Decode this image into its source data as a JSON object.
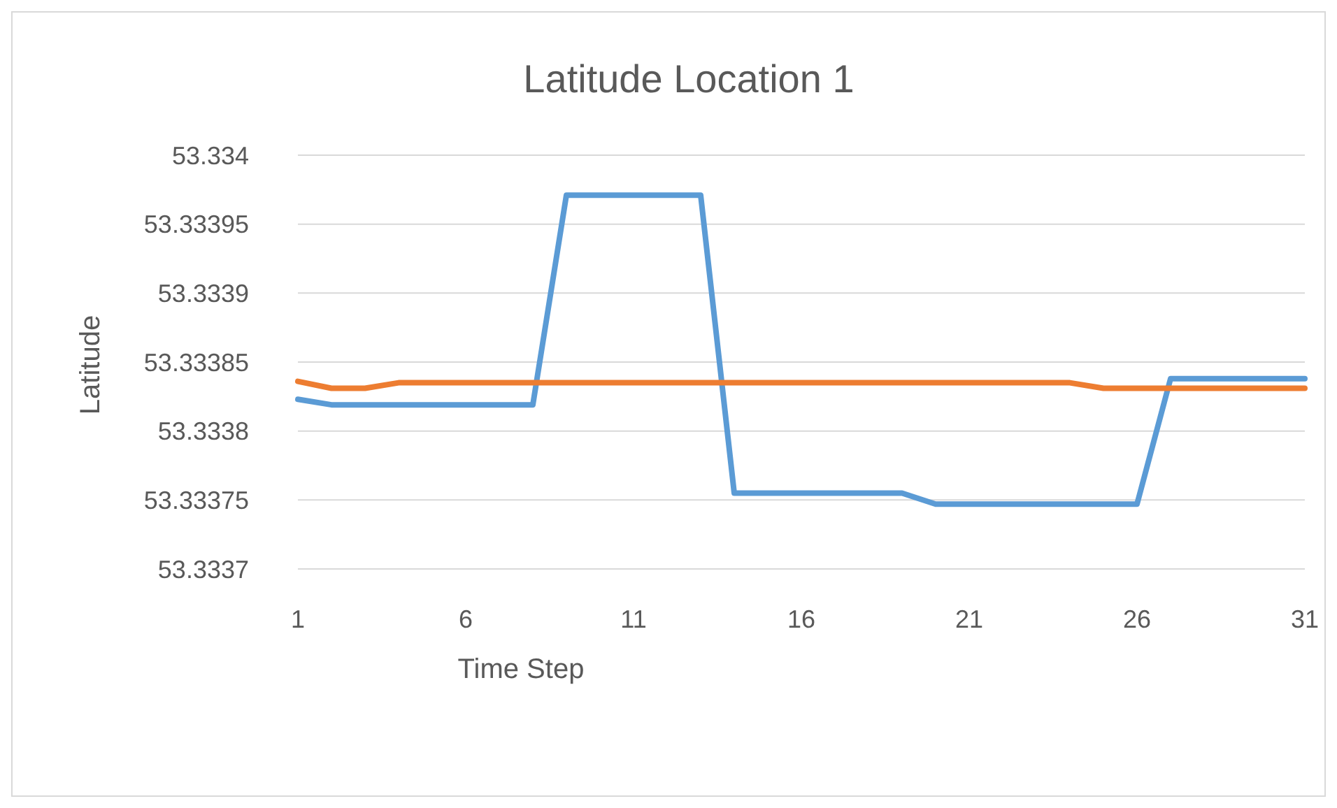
{
  "chart_data": {
    "type": "line",
    "title": "Latitude Location 1",
    "xlabel": "Time Step",
    "ylabel": "Latitude",
    "x": [
      1,
      2,
      3,
      4,
      5,
      6,
      7,
      8,
      9,
      10,
      11,
      12,
      13,
      14,
      15,
      16,
      17,
      18,
      19,
      20,
      21,
      22,
      23,
      24,
      25,
      26,
      27,
      28,
      29,
      30,
      31
    ],
    "xlim": [
      1,
      31
    ],
    "xticks": [
      1,
      6,
      11,
      16,
      21,
      26,
      31
    ],
    "ylim": [
      53.3337,
      53.334
    ],
    "yticks": [
      53.3337,
      53.33375,
      53.3338,
      53.33385,
      53.3339,
      53.33395,
      53.334
    ],
    "grid": "y",
    "marker": "none",
    "line_style": "solid",
    "series": [
      {
        "color": "#5b9bd5",
        "values": [
          53.333823,
          53.333819,
          53.333819,
          53.333819,
          53.333819,
          53.333819,
          53.333819,
          53.333819,
          53.333971,
          53.333971,
          53.333971,
          53.333971,
          53.333971,
          53.333755,
          53.333755,
          53.333755,
          53.333755,
          53.333755,
          53.333755,
          53.333747,
          53.333747,
          53.333747,
          53.333747,
          53.333747,
          53.333747,
          53.333747,
          53.333838,
          53.333838,
          53.333838,
          53.333838,
          53.333838
        ]
      },
      {
        "color": "#ed7d31",
        "values": [
          53.333836,
          53.333831,
          53.333831,
          53.333835,
          53.333835,
          53.333835,
          53.333835,
          53.333835,
          53.333835,
          53.333835,
          53.333835,
          53.333835,
          53.333835,
          53.333835,
          53.333835,
          53.333835,
          53.333835,
          53.333835,
          53.333835,
          53.333835,
          53.333835,
          53.333835,
          53.333835,
          53.333835,
          53.333831,
          53.333831,
          53.333831,
          53.333831,
          53.333831,
          53.333831,
          53.333831
        ]
      }
    ]
  }
}
